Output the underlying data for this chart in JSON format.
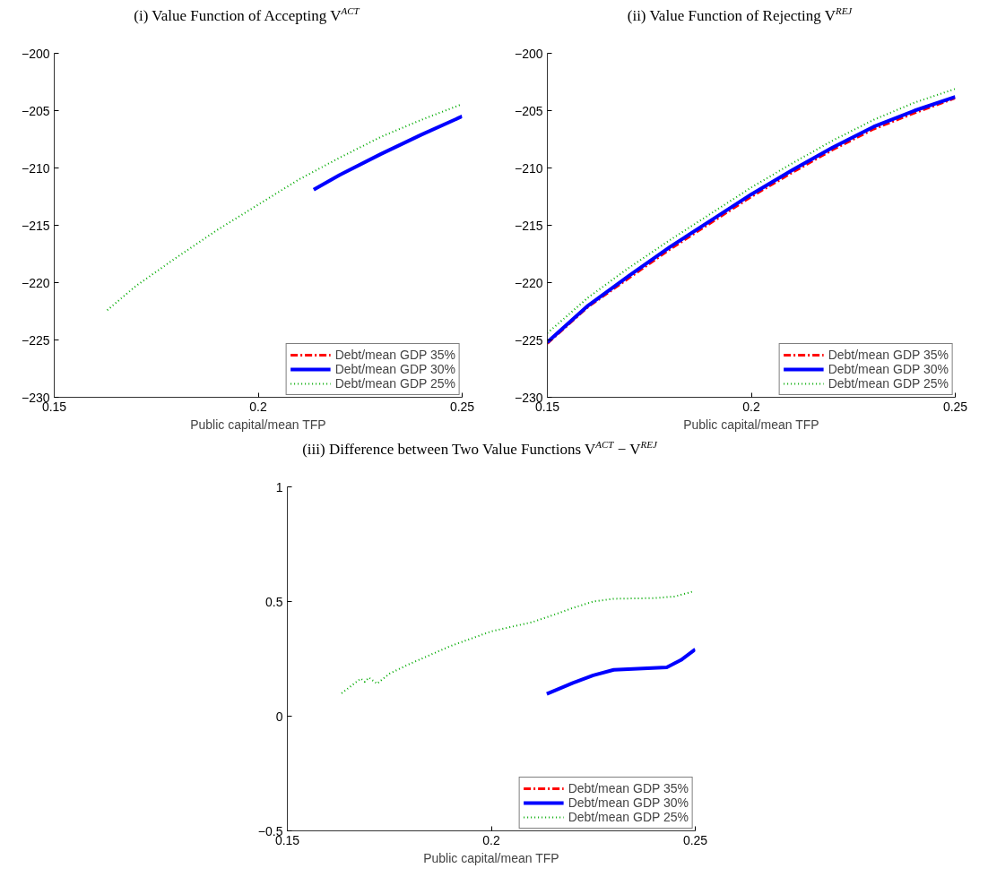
{
  "chart_data": [
    {
      "type": "line",
      "title": "(i) Value Function of Accepting V$^{ACT}$",
      "xlabel": "Public capital/mean TFP",
      "xlim": [
        0.15,
        0.25
      ],
      "xticks": [
        0.15,
        0.2,
        0.25
      ],
      "ylim": [
        -230,
        -200
      ],
      "yticks": [
        {
          "value": -230,
          "label": "−230"
        },
        {
          "value": -225,
          "label": "−225"
        },
        {
          "value": -220,
          "label": "−220"
        },
        {
          "value": -215,
          "label": "−215"
        },
        {
          "value": -210,
          "label": "−210"
        },
        {
          "value": -205,
          "label": "−205"
        },
        {
          "value": -200,
          "label": "−200"
        }
      ],
      "grid": false,
      "legend": "bottom right",
      "series": [
        {
          "name": "Debt/mean GDP 35%",
          "color": "#ff0000",
          "line_style": "dashdot"
        },
        {
          "name": "Debt/mean GDP 30%",
          "color": "#0000ff",
          "line_style": "solid",
          "x": [
            0.2136,
            0.22,
            0.23,
            0.24,
            0.25
          ],
          "values": [
            -211.9,
            -210.6,
            -208.8,
            -207.1,
            -205.5
          ]
        },
        {
          "name": "Debt/mean GDP 25%",
          "color": "#00aa00",
          "line_style": "dotted",
          "x": [
            0.163,
            0.17,
            0.18,
            0.19,
            0.2,
            0.21,
            0.22,
            0.23,
            0.24,
            0.2495
          ],
          "values": [
            -222.4,
            -220.3,
            -217.8,
            -215.4,
            -213.2,
            -211.0,
            -209.1,
            -207.3,
            -205.8,
            -204.5
          ]
        }
      ]
    },
    {
      "type": "line",
      "title": "(ii) Value Function of Rejecting V$^{REJ}$",
      "xlabel": "Public capital/mean TFP",
      "xlim": [
        0.15,
        0.25
      ],
      "xticks": [
        0.15,
        0.2,
        0.25
      ],
      "ylim": [
        -230,
        -200
      ],
      "yticks": [
        {
          "value": -230,
          "label": "−230"
        },
        {
          "value": -225,
          "label": "−225"
        },
        {
          "value": -220,
          "label": "−220"
        },
        {
          "value": -215,
          "label": "−215"
        },
        {
          "value": -210,
          "label": "−210"
        },
        {
          "value": -205,
          "label": "−205"
        },
        {
          "value": -200,
          "label": "−200"
        }
      ],
      "grid": false,
      "legend": "bottom right",
      "series": [
        {
          "name": "Debt/mean GDP 35%",
          "color": "#ff0000",
          "line_style": "dashdot",
          "x": [
            0.15,
            0.16,
            0.17,
            0.18,
            0.19,
            0.2,
            0.21,
            0.22,
            0.23,
            0.24,
            0.25
          ],
          "values": [
            -225.3,
            -222.1,
            -219.6,
            -217.1,
            -214.8,
            -212.5,
            -210.4,
            -208.4,
            -206.6,
            -205.2,
            -203.9
          ]
        },
        {
          "name": "Debt/mean GDP 30%",
          "color": "#0000ff",
          "line_style": "solid",
          "x": [
            0.15,
            0.16,
            0.17,
            0.18,
            0.19,
            0.2,
            0.21,
            0.22,
            0.23,
            0.24,
            0.25
          ],
          "values": [
            -225.2,
            -222.0,
            -219.4,
            -216.9,
            -214.6,
            -212.3,
            -210.2,
            -208.2,
            -206.4,
            -205.0,
            -203.8
          ]
        },
        {
          "name": "Debt/mean GDP 25%",
          "color": "#00aa00",
          "line_style": "dotted",
          "x": [
            0.15,
            0.16,
            0.17,
            0.18,
            0.19,
            0.2,
            0.21,
            0.22,
            0.23,
            0.24,
            0.25
          ],
          "values": [
            -224.4,
            -221.3,
            -218.7,
            -216.3,
            -214.0,
            -211.7,
            -209.6,
            -207.6,
            -205.8,
            -204.3,
            -203.1
          ]
        }
      ]
    },
    {
      "type": "line",
      "title": "(iii) Difference between Two Value Functions V$^{ACT}$ − V$^{REJ}$",
      "xlabel": "Public capital/mean TFP",
      "xlim": [
        0.15,
        0.25
      ],
      "xticks": [
        0.15,
        0.2,
        0.25
      ],
      "ylim": [
        -0.5,
        1
      ],
      "yticks": [
        {
          "value": -0.5,
          "label": "−0.5"
        },
        0,
        0.5,
        1
      ],
      "grid": false,
      "legend": "bottom right",
      "series": [
        {
          "name": "Debt/mean GDP 35%",
          "color": "#ff0000",
          "line_style": "dashdot"
        },
        {
          "name": "Debt/mean GDP 30%",
          "color": "#0000ff",
          "line_style": "solid",
          "x": [
            0.2136,
            0.22,
            0.225,
            0.23,
            0.243,
            0.2465,
            0.25
          ],
          "values": [
            0.097,
            0.145,
            0.178,
            0.202,
            0.213,
            0.245,
            0.292
          ]
        },
        {
          "name": "Debt/mean GDP 25%",
          "color": "#00aa00",
          "line_style": "dotted",
          "x": [
            0.1633,
            0.168,
            0.169,
            0.17,
            0.172,
            0.175,
            0.18,
            0.19,
            0.2,
            0.21,
            0.215,
            0.22,
            0.225,
            0.23,
            0.24,
            0.245,
            0.2495
          ],
          "values": [
            0.1,
            0.164,
            0.15,
            0.168,
            0.142,
            0.185,
            0.228,
            0.306,
            0.37,
            0.41,
            0.44,
            0.472,
            0.5,
            0.512,
            0.515,
            0.522,
            0.544
          ]
        }
      ]
    }
  ]
}
